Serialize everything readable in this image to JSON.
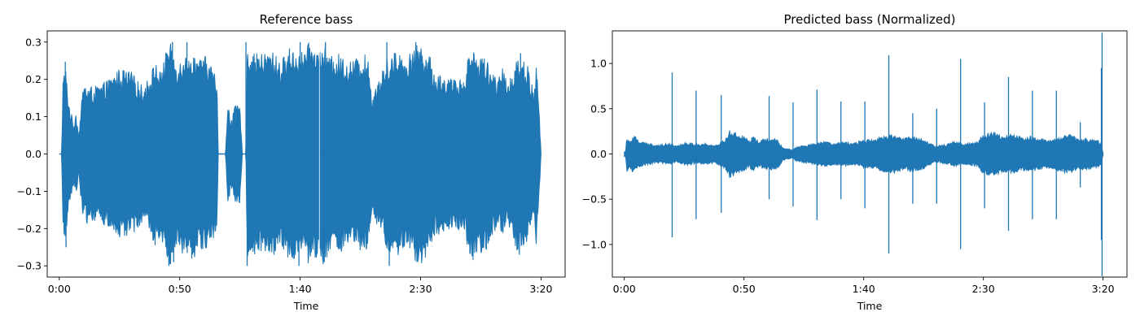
{
  "colors": {
    "waveform": "#1f77b4",
    "axes": "#000000",
    "background": "#ffffff"
  },
  "chart_data": [
    {
      "type": "line",
      "title": "Reference bass",
      "xlabel": "Time",
      "ylabel": "",
      "x_unit": "seconds",
      "xlim": [
        -5,
        210
      ],
      "ylim": [
        -0.33,
        0.33
      ],
      "xticks": [
        0,
        50,
        100,
        150,
        200
      ],
      "xtick_labels": [
        "0:00",
        "0:50",
        "1:40",
        "2:30",
        "3:20"
      ],
      "yticks": [
        0.3,
        0.2,
        0.1,
        0.0,
        -0.1,
        -0.2,
        -0.3
      ],
      "ytick_labels": [
        "0.3",
        "0.2",
        "0.1",
        "0.0",
        "−0.1",
        "−0.2",
        "−0.3"
      ],
      "grid": false,
      "duration": 200,
      "envelope": {
        "t": [
          0,
          1,
          1.5,
          2.5,
          4,
          6,
          7,
          8,
          10,
          14,
          18,
          20,
          25,
          30,
          35,
          40,
          42,
          44,
          46,
          48,
          50,
          52,
          54,
          56,
          58,
          60,
          62,
          64,
          65.5,
          66,
          69,
          70,
          70.5,
          71,
          72,
          73,
          75,
          76,
          77.5,
          78,
          80,
          84,
          88,
          92,
          96,
          100,
          104,
          108,
          110,
          112,
          116,
          120,
          124,
          128,
          130,
          131,
          133,
          136,
          140,
          144,
          148,
          150,
          152,
          154,
          156,
          160,
          164,
          168,
          170,
          172,
          174,
          176,
          178,
          180,
          182,
          184,
          186,
          188,
          190,
          192,
          194,
          196,
          197,
          198,
          199,
          200
        ],
        "amp": [
          0,
          0,
          0.2,
          0.24,
          0.14,
          0.08,
          0.12,
          0.05,
          0.19,
          0.18,
          0.19,
          0.2,
          0.23,
          0.22,
          0.18,
          0.25,
          0.22,
          0.27,
          0.3,
          0.26,
          0.25,
          0.29,
          0.25,
          0.28,
          0.25,
          0.27,
          0.25,
          0.23,
          0.19,
          0,
          0,
          0.13,
          0.13,
          0.09,
          0.11,
          0.13,
          0.13,
          0,
          0,
          0.3,
          0.27,
          0.27,
          0.28,
          0.25,
          0.29,
          0.27,
          0.3,
          0.28,
          0.3,
          0.26,
          0.27,
          0.25,
          0.26,
          0.27,
          0.15,
          0.19,
          0.2,
          0.26,
          0.28,
          0.26,
          0.29,
          0.3,
          0.28,
          0.26,
          0.22,
          0.21,
          0.2,
          0.21,
          0.27,
          0.29,
          0.26,
          0.27,
          0.25,
          0.22,
          0.2,
          0.23,
          0.2,
          0.22,
          0.27,
          0.25,
          0.25,
          0.2,
          0.15,
          0.25,
          0.15,
          0
        ]
      },
      "peaks": [
        {
          "t": 2.5,
          "v": 0.247
        },
        {
          "t": 2.8,
          "v": -0.25
        },
        {
          "t": 44.5,
          "v": 0.27
        },
        {
          "t": 45.5,
          "v": -0.3
        },
        {
          "t": 47,
          "v": 0.3
        },
        {
          "t": 47.5,
          "v": -0.29
        },
        {
          "t": 53,
          "v": 0.3
        },
        {
          "t": 55,
          "v": -0.28
        },
        {
          "t": 77.5,
          "v": 0.3
        },
        {
          "t": 78,
          "v": -0.3
        },
        {
          "t": 100,
          "v": 0.3
        },
        {
          "t": 99.5,
          "v": -0.3
        },
        {
          "t": 110.5,
          "v": 0.3
        },
        {
          "t": 110,
          "v": -0.29
        },
        {
          "t": 136,
          "v": 0.3
        },
        {
          "t": 137,
          "v": -0.3
        },
        {
          "t": 148,
          "v": 0.3
        },
        {
          "t": 148.5,
          "v": -0.29
        },
        {
          "t": 191.5,
          "v": 0.27
        },
        {
          "t": 191,
          "v": -0.27
        }
      ],
      "markers": [
        {
          "t": 108,
          "v": 0.3
        },
        {
          "t": 108,
          "v": -0.3
        }
      ]
    },
    {
      "type": "line",
      "title": "Predicted bass (Normalized)",
      "xlabel": "Time",
      "ylabel": "",
      "x_unit": "seconds",
      "xlim": [
        -5,
        210
      ],
      "ylim": [
        -1.36,
        1.36
      ],
      "xticks": [
        0,
        50,
        100,
        150,
        200
      ],
      "xtick_labels": [
        "0:00",
        "0:50",
        "1:40",
        "2:30",
        "3:20"
      ],
      "yticks": [
        1.0,
        0.5,
        0.0,
        -0.5,
        -1.0
      ],
      "ytick_labels": [
        "1.0",
        "0.5",
        "0.0",
        "−0.5",
        "−1.0"
      ],
      "grid": false,
      "duration": 200,
      "envelope": {
        "t": [
          0,
          0.5,
          1,
          2,
          4,
          6,
          10,
          14,
          18,
          22,
          26,
          30,
          34,
          38,
          42,
          44,
          46,
          48,
          50,
          52,
          54,
          56,
          60,
          64,
          66,
          68,
          70,
          72,
          76,
          80,
          84,
          88,
          92,
          96,
          100,
          104,
          108,
          112,
          116,
          120,
          124,
          128,
          130,
          134,
          138,
          142,
          146,
          148,
          150,
          154,
          158,
          162,
          166,
          170,
          174,
          178,
          182,
          186,
          190,
          194,
          198,
          199,
          200
        ],
        "amp": [
          0.03,
          0.02,
          0.2,
          0.15,
          0.22,
          0.15,
          0.12,
          0.1,
          0.12,
          0.1,
          0.13,
          0.11,
          0.12,
          0.1,
          0.16,
          0.27,
          0.24,
          0.21,
          0.2,
          0.15,
          0.2,
          0.15,
          0.18,
          0.17,
          0.08,
          0.06,
          0.05,
          0.08,
          0.1,
          0.12,
          0.14,
          0.12,
          0.14,
          0.12,
          0.16,
          0.16,
          0.2,
          0.22,
          0.18,
          0.2,
          0.18,
          0.12,
          0.09,
          0.11,
          0.14,
          0.12,
          0.13,
          0.16,
          0.22,
          0.25,
          0.2,
          0.22,
          0.19,
          0.2,
          0.17,
          0.16,
          0.2,
          0.22,
          0.17,
          0.18,
          0.15,
          0.12,
          0.02
        ]
      },
      "peaks": [
        {
          "t": 20,
          "v": 0.9
        },
        {
          "t": 20,
          "v": -0.92
        },
        {
          "t": 30,
          "v": 0.7
        },
        {
          "t": 30,
          "v": -0.72
        },
        {
          "t": 40.5,
          "v": 0.65
        },
        {
          "t": 40.5,
          "v": -0.65
        },
        {
          "t": 60.5,
          "v": 0.64
        },
        {
          "t": 60.5,
          "v": -0.5
        },
        {
          "t": 70.5,
          "v": 0.57
        },
        {
          "t": 70.5,
          "v": -0.58
        },
        {
          "t": 80.5,
          "v": 0.71
        },
        {
          "t": 80.5,
          "v": -0.73
        },
        {
          "t": 90.5,
          "v": 0.58
        },
        {
          "t": 90.5,
          "v": -0.5
        },
        {
          "t": 100.5,
          "v": 0.58
        },
        {
          "t": 100.5,
          "v": -0.6
        },
        {
          "t": 110.5,
          "v": 1.09
        },
        {
          "t": 110.5,
          "v": -1.1
        },
        {
          "t": 120.5,
          "v": 0.45
        },
        {
          "t": 120.5,
          "v": -0.55
        },
        {
          "t": 130.5,
          "v": 0.5
        },
        {
          "t": 130.5,
          "v": -0.55
        },
        {
          "t": 140.5,
          "v": 1.05
        },
        {
          "t": 140.5,
          "v": -1.05
        },
        {
          "t": 150.5,
          "v": 0.57
        },
        {
          "t": 150.5,
          "v": -0.6
        },
        {
          "t": 160.5,
          "v": 0.85
        },
        {
          "t": 160.5,
          "v": -0.85
        },
        {
          "t": 170.5,
          "v": 0.7
        },
        {
          "t": 170.5,
          "v": -0.72
        },
        {
          "t": 180.5,
          "v": 0.7
        },
        {
          "t": 180.5,
          "v": -0.72
        },
        {
          "t": 190.5,
          "v": 0.35
        },
        {
          "t": 190.5,
          "v": -0.37
        },
        {
          "t": 199.3,
          "v": 0.95
        },
        {
          "t": 199.3,
          "v": -0.95
        },
        {
          "t": 199.6,
          "v": 1.34
        },
        {
          "t": 199.6,
          "v": -1.35
        }
      ],
      "markers": []
    }
  ]
}
